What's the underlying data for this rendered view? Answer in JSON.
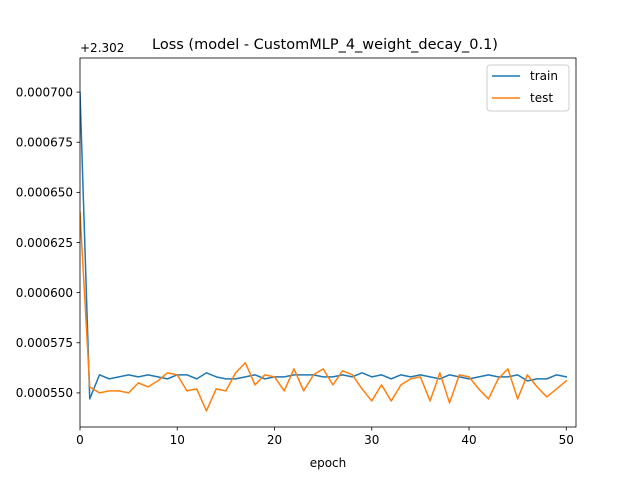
{
  "chart_data": {
    "type": "line",
    "title": "Loss (model - CustomMLP_4_weight_decay_0.1)",
    "xlabel": "epoch",
    "ylabel": "",
    "offset_label": "+2.302",
    "xlim": [
      0,
      51
    ],
    "ylim": [
      0.000533,
      0.000717
    ],
    "xticks": [
      0,
      10,
      20,
      30,
      40,
      50
    ],
    "yticks": [
      0.00055,
      0.000575,
      0.0006,
      0.000625,
      0.00065,
      0.000675,
      0.0007
    ],
    "ytick_labels": [
      "0.000550",
      "0.000575",
      "0.000600",
      "0.000625",
      "0.000650",
      "0.000675",
      "0.000700"
    ],
    "legend_position": "top-right",
    "series": [
      {
        "name": "train",
        "color": "#1f77b4",
        "x": [
          0,
          1,
          2,
          3,
          4,
          5,
          6,
          7,
          8,
          9,
          10,
          11,
          12,
          13,
          14,
          15,
          16,
          17,
          18,
          19,
          20,
          21,
          22,
          23,
          24,
          25,
          26,
          27,
          28,
          29,
          30,
          31,
          32,
          33,
          34,
          35,
          36,
          37,
          38,
          39,
          40,
          41,
          42,
          43,
          44,
          45,
          46,
          47,
          48,
          49,
          50
        ],
        "values": [
          0.0007,
          0.000547,
          0.000559,
          0.000557,
          0.000558,
          0.000559,
          0.000558,
          0.000559,
          0.000558,
          0.000557,
          0.000559,
          0.000559,
          0.000557,
          0.00056,
          0.000558,
          0.000557,
          0.000557,
          0.000558,
          0.000559,
          0.000557,
          0.000558,
          0.000558,
          0.000559,
          0.000559,
          0.000559,
          0.000558,
          0.000558,
          0.000559,
          0.000558,
          0.00056,
          0.000558,
          0.000559,
          0.000557,
          0.000559,
          0.000558,
          0.000559,
          0.000558,
          0.000557,
          0.000559,
          0.000558,
          0.000557,
          0.000558,
          0.000559,
          0.000558,
          0.000558,
          0.000559,
          0.000556,
          0.000557,
          0.000557,
          0.000559,
          0.000558
        ]
      },
      {
        "name": "test",
        "color": "#ff7f0e",
        "x": [
          0,
          1,
          2,
          3,
          4,
          5,
          6,
          7,
          8,
          9,
          10,
          11,
          12,
          13,
          14,
          15,
          16,
          17,
          18,
          19,
          20,
          21,
          22,
          23,
          24,
          25,
          26,
          27,
          28,
          29,
          30,
          31,
          32,
          33,
          34,
          35,
          36,
          37,
          38,
          39,
          40,
          41,
          42,
          43,
          44,
          45,
          46,
          47,
          48,
          49,
          50
        ],
        "values": [
          0.00064,
          0.000553,
          0.00055,
          0.000551,
          0.000551,
          0.00055,
          0.000555,
          0.000553,
          0.000556,
          0.00056,
          0.000559,
          0.000551,
          0.000552,
          0.000541,
          0.000552,
          0.000551,
          0.00056,
          0.000565,
          0.000554,
          0.000559,
          0.000558,
          0.000551,
          0.000562,
          0.000551,
          0.000559,
          0.000562,
          0.000554,
          0.000561,
          0.000559,
          0.000552,
          0.000546,
          0.000554,
          0.000546,
          0.000554,
          0.000557,
          0.000558,
          0.000546,
          0.00056,
          0.000545,
          0.000559,
          0.000558,
          0.000552,
          0.000547,
          0.000557,
          0.000562,
          0.000547,
          0.000559,
          0.000553,
          0.000548,
          0.000552,
          0.000556
        ]
      }
    ]
  }
}
